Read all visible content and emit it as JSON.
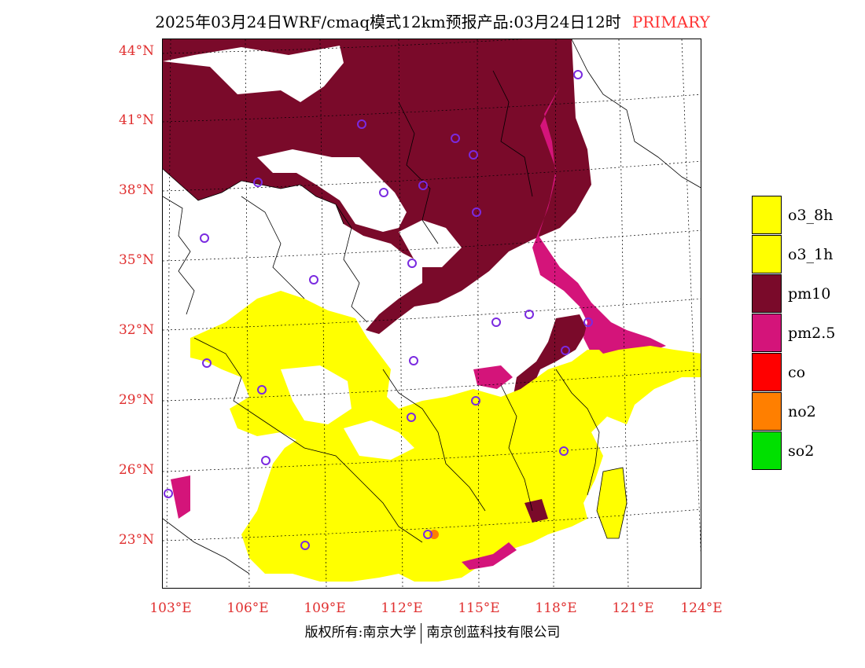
{
  "header": {
    "title": "2025年03月24日WRF/cmaq模式12km预报产品:03月24日12时",
    "tag": "PRIMARY"
  },
  "map": {
    "lat_labels": [
      "44°N",
      "41°N",
      "38°N",
      "35°N",
      "32°N",
      "29°N",
      "26°N",
      "23°N"
    ],
    "lon_labels": [
      "103°E",
      "106°E",
      "109°E",
      "112°E",
      "115°E",
      "118°E",
      "121°E",
      "124°E"
    ]
  },
  "legend": {
    "items": [
      {
        "label": "o3_8h",
        "color": "#ffff00"
      },
      {
        "label": "o3_1h",
        "color": "#ffff00"
      },
      {
        "label": "pm10",
        "color": "#7a0a2a"
      },
      {
        "label": "pm2.5",
        "color": "#d4147a"
      },
      {
        "label": "co",
        "color": "#ff0000"
      },
      {
        "label": "no2",
        "color": "#ff7f00"
      },
      {
        "label": "so2",
        "color": "#00e000"
      }
    ]
  },
  "footer": {
    "left": "版权所有:南京大学",
    "right": "南京创蓝科技有限公司"
  }
}
